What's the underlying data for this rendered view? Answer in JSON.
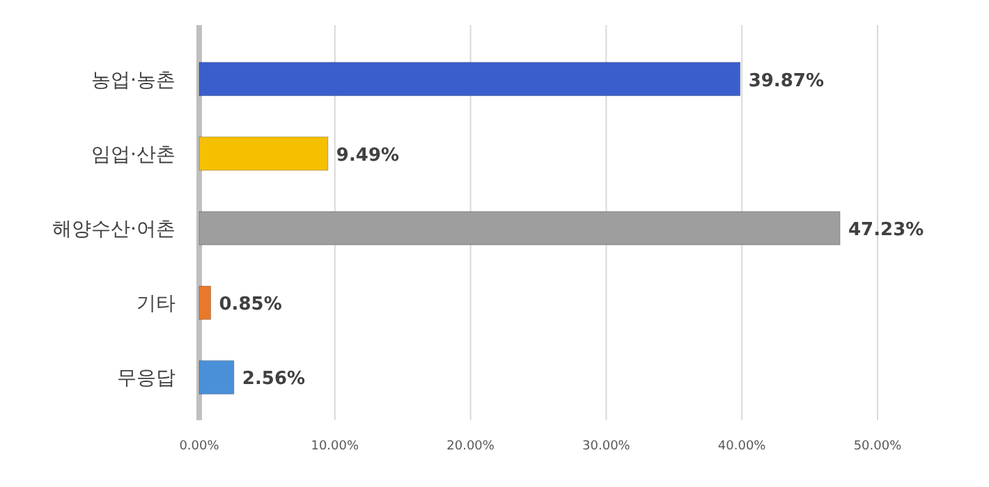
{
  "chart_data": {
    "type": "bar",
    "orientation": "horizontal",
    "categories": [
      "농업·농촌",
      "임업·산촌",
      "해양수산·어촌",
      "기타",
      "무응답"
    ],
    "values": [
      39.87,
      9.49,
      47.23,
      0.85,
      2.56
    ],
    "colors": [
      "#3a5fcd",
      "#f5c000",
      "#9e9e9e",
      "#e9782a",
      "#4a90d9"
    ],
    "value_labels": [
      "39.87%",
      "9.49%",
      "47.23%",
      "0.85%",
      "2.56%"
    ],
    "xlim": [
      0,
      50
    ],
    "xticks": [
      {
        "value": 0,
        "label": "0.00%"
      },
      {
        "value": 10,
        "label": "10.00%"
      },
      {
        "value": 20,
        "label": "20.00%"
      },
      {
        "value": 30,
        "label": "30.00%"
      },
      {
        "value": 40,
        "label": "40.00%"
      },
      {
        "value": 50,
        "label": "50.00%"
      }
    ],
    "grid": "x"
  }
}
